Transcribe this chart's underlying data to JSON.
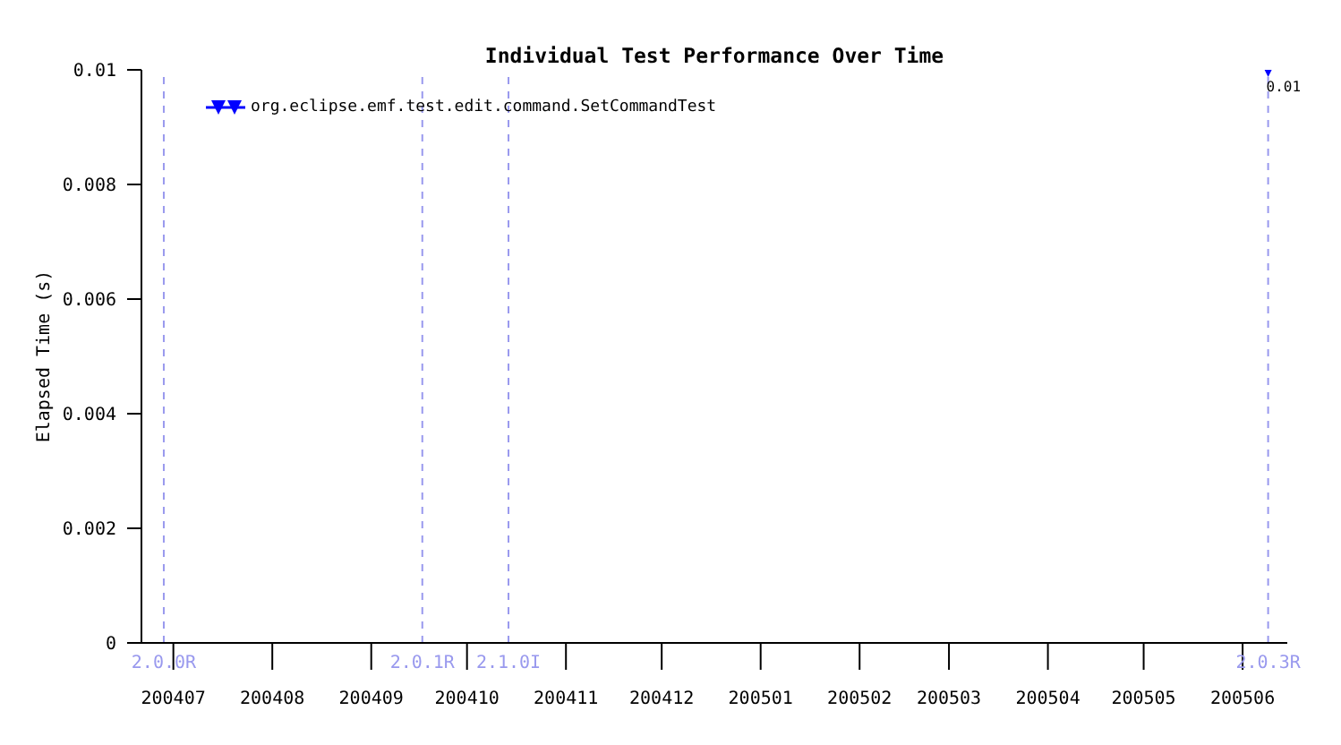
{
  "chart_data": {
    "type": "line",
    "title": "Individual Test Performance Over Time",
    "ylabel": "Elapsed Time (s)",
    "x": [
      "2005-06-09"
    ],
    "series": [
      {
        "name": "org.eclipse.emf.test.edit.command.SetCommandTest",
        "color": "#0000ff",
        "values": [
          0.01
        ]
      }
    ],
    "xlim": [
      "2004-06-21",
      "2005-06-15"
    ],
    "xticks": [
      {
        "value": "2004-07-01",
        "label": "200407"
      },
      {
        "value": "2004-08-01",
        "label": "200408"
      },
      {
        "value": "2004-09-01",
        "label": "200409"
      },
      {
        "value": "2004-10-01",
        "label": "200410"
      },
      {
        "value": "2004-11-01",
        "label": "200411"
      },
      {
        "value": "2004-12-01",
        "label": "200412"
      },
      {
        "value": "2005-01-01",
        "label": "200501"
      },
      {
        "value": "2005-02-01",
        "label": "200502"
      },
      {
        "value": "2005-03-01",
        "label": "200503"
      },
      {
        "value": "2005-04-01",
        "label": "200504"
      },
      {
        "value": "2005-05-01",
        "label": "200505"
      },
      {
        "value": "2005-06-01",
        "label": "200506"
      }
    ],
    "ylim": [
      0,
      0.01
    ],
    "yticks": [
      0,
      0.002,
      0.004,
      0.006,
      0.008,
      0.01
    ],
    "ref_lines": [
      {
        "axis": "x",
        "value": "2004-06-28",
        "label": "2.0.0R",
        "color": "#9999ee",
        "line_style": "dashed"
      },
      {
        "axis": "x",
        "value": "2004-09-17",
        "label": "2.0.1R",
        "color": "#9999ee",
        "line_style": "dashed"
      },
      {
        "axis": "x",
        "value": "2004-10-14",
        "label": "2.1.0I",
        "color": "#9999ee",
        "line_style": "dashed"
      },
      {
        "axis": "x",
        "value": "2005-06-09",
        "label": "2.0.3R",
        "color": "#9999ee",
        "line_style": "dashed"
      }
    ],
    "data_labels": true,
    "legend": "top left",
    "marker": "triangle",
    "grid": false
  }
}
